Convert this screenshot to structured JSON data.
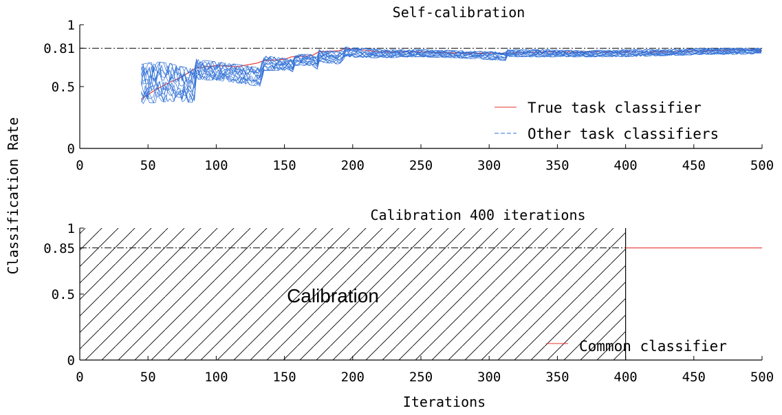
{
  "ylabel": "Classification Rate",
  "chart_data": [
    {
      "type": "line",
      "title": "Self-calibration",
      "xlabel": "",
      "ylabel": "Classification Rate",
      "xlim": [
        0,
        500
      ],
      "ylim": [
        0,
        1
      ],
      "x_ticks": [
        0,
        50,
        100,
        150,
        200,
        250,
        300,
        350,
        400,
        450,
        500
      ],
      "x_tick_labels": [
        "0",
        "50",
        "100",
        "150",
        "200",
        "250",
        "300",
        "350",
        "400",
        "450",
        "500"
      ],
      "y_ticks": [
        0,
        0.5,
        0.81,
        1
      ],
      "y_tick_labels": [
        "0",
        "0.5",
        "0.81",
        "1"
      ],
      "reference_line": {
        "y": 0.81,
        "style": "dash-dot",
        "color": "#000000"
      },
      "grid": false,
      "legend_position": "lower-right",
      "series": [
        {
          "name": "True task classifier",
          "color": "#e8312e",
          "x": [
            45,
            55,
            65,
            75,
            85,
            100,
            115,
            130,
            135,
            150,
            155,
            170,
            175,
            190,
            195,
            220,
            250,
            280,
            310,
            340,
            370,
            400,
            430,
            460,
            490,
            500
          ],
          "y": [
            0.4,
            0.47,
            0.53,
            0.58,
            0.65,
            0.67,
            0.66,
            0.69,
            0.71,
            0.72,
            0.74,
            0.75,
            0.78,
            0.79,
            0.81,
            0.78,
            0.78,
            0.77,
            0.77,
            0.78,
            0.78,
            0.78,
            0.78,
            0.79,
            0.8,
            0.79
          ]
        },
        {
          "name": "Other task classifiers",
          "color": "#2e6fd6",
          "style": "dashed",
          "x": [
            45,
            55,
            65,
            75,
            84,
            85,
            100,
            115,
            133,
            134,
            150,
            156,
            157,
            170,
            174,
            175,
            190,
            195,
            220,
            250,
            280,
            312,
            313,
            340,
            370,
            400,
            430,
            460,
            490,
            500
          ],
          "y_low": [
            0.36,
            0.37,
            0.38,
            0.38,
            0.37,
            0.56,
            0.55,
            0.53,
            0.5,
            0.63,
            0.63,
            0.62,
            0.67,
            0.67,
            0.64,
            0.7,
            0.68,
            0.74,
            0.73,
            0.74,
            0.73,
            0.71,
            0.74,
            0.74,
            0.74,
            0.74,
            0.75,
            0.76,
            0.76,
            0.77
          ],
          "y_high": [
            0.68,
            0.7,
            0.69,
            0.66,
            0.64,
            0.72,
            0.7,
            0.68,
            0.65,
            0.75,
            0.73,
            0.72,
            0.76,
            0.76,
            0.74,
            0.8,
            0.78,
            0.82,
            0.8,
            0.8,
            0.79,
            0.78,
            0.8,
            0.8,
            0.79,
            0.8,
            0.8,
            0.81,
            0.81,
            0.81
          ]
        }
      ]
    },
    {
      "type": "line",
      "title": "Calibration 400 iterations",
      "xlabel": "Iterations",
      "ylabel": "Classification Rate",
      "xlim": [
        0,
        500
      ],
      "ylim": [
        0,
        1
      ],
      "x_ticks": [
        0,
        50,
        100,
        150,
        200,
        250,
        300,
        350,
        400,
        450,
        500
      ],
      "x_tick_labels": [
        "0",
        "50",
        "100",
        "150",
        "200",
        "250",
        "300",
        "350",
        "400",
        "450",
        "500"
      ],
      "y_ticks": [
        0,
        0.5,
        0.85,
        1
      ],
      "y_tick_labels": [
        "0",
        "0.5",
        "0.85",
        "1"
      ],
      "reference_line": {
        "y": 0.85,
        "style": "dash-dot",
        "color": "#000000"
      },
      "grid": false,
      "legend_position": "lower-right",
      "shaded_region": {
        "x": [
          0,
          400
        ],
        "pattern": "diagonal-hatch",
        "label": "Calibration"
      },
      "series": [
        {
          "name": "Common classifier",
          "color": "#e8312e",
          "x": [
            400,
            500
          ],
          "y": [
            0.85,
            0.85
          ]
        }
      ]
    }
  ]
}
